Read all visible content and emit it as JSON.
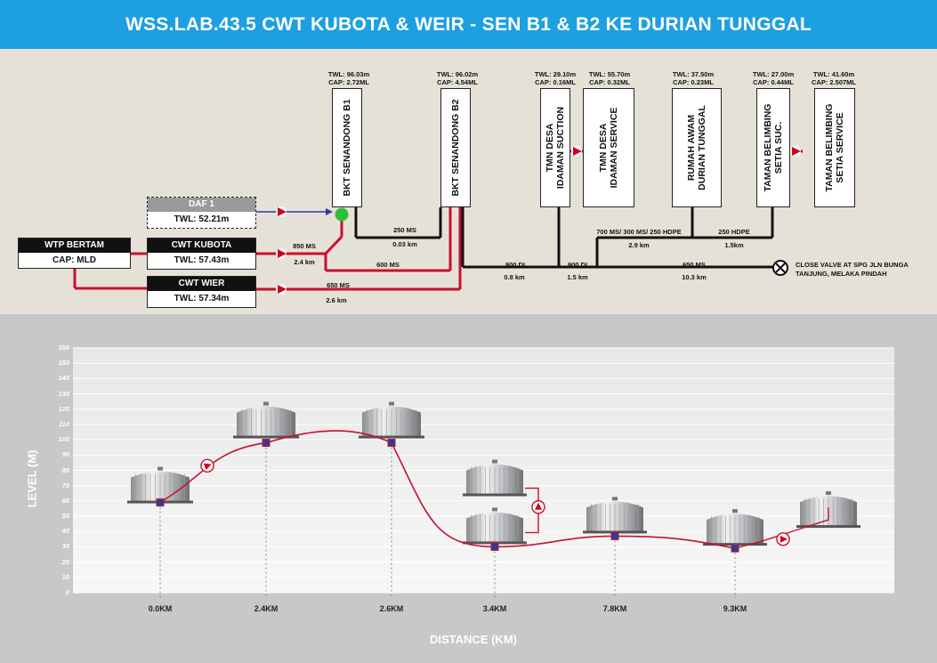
{
  "title": "WSS.LAB.43.5 CWT KUBOTA & WEIR - SEN B1 & B2 KE DURIAN TUNGGAL",
  "colors": {
    "header": "#1e9fe0",
    "pipe_red": "#c8102e",
    "pipe_black": "#111111",
    "pipe_blue": "#2b3c9e",
    "node_green": "#2fbf3a"
  },
  "sources": {
    "wtp": {
      "name": "WTP BERTAM",
      "cap": "CAP: MLD"
    },
    "kubota": {
      "name": "CWT KUBOTA",
      "twl": "TWL: 57.43m"
    },
    "wier": {
      "name": "CWT WIER",
      "twl": "TWL: 57.34m"
    },
    "daf": {
      "name": "DAF 1",
      "twl": "TWL: 52.21m"
    }
  },
  "tanks": [
    {
      "name": "BKT SENANDONG B1",
      "twl": "TWL: 96.03m",
      "cap": "CAP: 2.72ML"
    },
    {
      "name": "BKT SENANDONG B2",
      "twl": "TWL: 96.02m",
      "cap": "CAP: 4.54ML"
    },
    {
      "name": "TMN DESA\nIDAMAN SUCTION",
      "twl": "TWL: 29.10m",
      "cap": "CAP: 0.16ML"
    },
    {
      "name": "TMN DESA\nIDAMAN SERVICE",
      "twl": "TWL: 55.70m",
      "cap": "CAP: 0.32ML"
    },
    {
      "name": "RUMAH AWAM\nDURIAN TUNGGAL",
      "twl": "TWL: 37.50m",
      "cap": "CAP: 0.23ML"
    },
    {
      "name": "TAMAN BELIMBING\nSETIA SUC.",
      "twl": "TWL: 27.00m",
      "cap": "CAP: 0.44ML"
    },
    {
      "name": "TAMAN BELIMBING\nSETIA SERVICE",
      "twl": "TWL: 41.60m",
      "cap": "CAP: 2.507ML"
    }
  ],
  "pipes": {
    "p850": {
      "spec": "850 MS",
      "len": "2.4 km"
    },
    "p650a": {
      "spec": "650 MS",
      "len": "2.6 km"
    },
    "p600": {
      "spec": "600 MS"
    },
    "p250a": {
      "spec": "250 MS",
      "len": "0.03 km"
    },
    "p900a": {
      "spec": "900 DI",
      "len": "0.8 km"
    },
    "p900b": {
      "spec": "900 DI",
      "len": "1.5 km"
    },
    "p650b": {
      "spec": "650 MS",
      "len": "10.3 km"
    },
    "p700": {
      "spec": "700 MS/ 300 MS/ 250 HDPE",
      "len": "2.9 km"
    },
    "p250b": {
      "spec": "250 HDPE",
      "len": "1.5km"
    }
  },
  "valve_note": "CLOSE VALVE AT SPG JLN BUNGA\nTANJUNG, MELAKA PINDAH",
  "chart_data": {
    "type": "line",
    "ylabel": "LEVEL (M)",
    "xlabel": "DISTANCE (KM)",
    "ylim": [
      0,
      160
    ],
    "yticks": [
      0,
      10,
      20,
      30,
      40,
      50,
      60,
      70,
      80,
      90,
      100,
      110,
      120,
      130,
      140,
      150,
      160
    ],
    "categories": [
      "0.0KM",
      "2.4KM",
      "2.6KM",
      "3.4KM",
      "7.8KM",
      "9.3KM"
    ],
    "grid": true,
    "profile_points": [
      {
        "x": "0.0KM",
        "y": 59
      },
      {
        "x": "2.4KM",
        "y": 98
      },
      {
        "x": "2.6KM",
        "y": 98
      },
      {
        "x": "3.4KM",
        "y": 30
      },
      {
        "x": "7.8KM",
        "y": 37
      },
      {
        "x": "9.3KM",
        "y": 29
      }
    ]
  }
}
